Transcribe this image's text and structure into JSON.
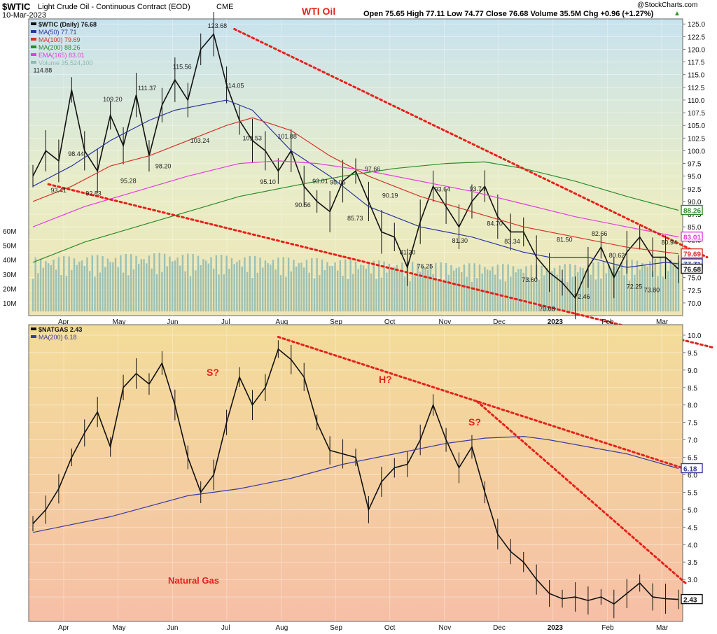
{
  "header": {
    "symbol": "$WTIC",
    "description": "Light Crude Oil - Continuous Contract (EOD)",
    "exchange": "CME",
    "date": "10-Mar-2023",
    "credit": "@StockCharts.com",
    "quote": "Open 75.65  High 77.11  Low 74.77  Close 76.68  Volume 35.5M  Chg +0.96 (+1.27%)",
    "quote_arrow": "▲"
  },
  "annotations": {
    "wti_title": "WTI Oil",
    "natgas_title": "Natural Gas",
    "s1": "S?",
    "h": "H?",
    "s2": "S?"
  },
  "colors": {
    "price": "#111111",
    "ma50": "#2b35a0",
    "ma100": "#d6332a",
    "ma200": "#2c8a2c",
    "ema165": "#e43ce0",
    "volume": "#8fb8b0",
    "trendline": "#e4221b",
    "natgas_ma200": "#3a3aa0"
  },
  "chart_data": [
    {
      "type": "line",
      "title": "$WTIC Light Crude Oil - Continuous Contract (EOD)",
      "x_axis_labels": [
        "Apr",
        "May",
        "Jun",
        "Jul",
        "Aug",
        "Sep",
        "Oct",
        "Nov",
        "Dec",
        "2023",
        "Feb",
        "Mar"
      ],
      "ylim": [
        67.5,
        126
      ],
      "y_ticks": [
        70.0,
        72.5,
        75.0,
        77.5,
        80.0,
        82.5,
        85.0,
        87.5,
        90.0,
        92.5,
        95.0,
        97.5,
        100.0,
        102.5,
        105.0,
        107.5,
        110.0,
        112.5,
        115.0,
        117.5,
        120.0,
        122.5,
        125.0
      ],
      "volume_ticks": [
        "60M",
        "50M",
        "40M",
        "30M",
        "20M",
        "10M"
      ],
      "legend": [
        {
          "label": "$WTIC (Daily) 76.68",
          "color": "#111111"
        },
        {
          "label": "MA(50) 77.71",
          "color": "#2b35a0"
        },
        {
          "label": "MA(100) 79.69",
          "color": "#d6332a"
        },
        {
          "label": "MA(200) 88.26",
          "color": "#2c8a2c"
        },
        {
          "label": "EMA(165) 83.01",
          "color": "#e43ce0"
        },
        {
          "label": "Volume 35,524,100",
          "color": "#8fb8b0"
        }
      ],
      "price_labels": [
        "114.88",
        "93.41",
        "98.44",
        "92.83",
        "109.20",
        "95.28",
        "111.37",
        "98.20",
        "115.56",
        "103.24",
        "123.68",
        "114.05",
        "101.53",
        "95.10",
        "101.88",
        "90.56",
        "93.01",
        "95.05",
        "85.73",
        "97.66",
        "90.19",
        "81.20",
        "76.25",
        "93.64",
        "81.30",
        "93.74",
        "84.70",
        "83.34",
        "73.60",
        "70.08",
        "81.50",
        "72.46",
        "82.66",
        "80.62",
        "72.25",
        "73.80",
        "80.94"
      ],
      "last_value_tags": [
        {
          "value": "88.26",
          "color": "#2c8a2c"
        },
        {
          "value": "83.01",
          "color": "#e43ce0"
        },
        {
          "value": "79.69",
          "color": "#d6332a"
        },
        {
          "value": "77.71",
          "color": "#2b35a0"
        },
        {
          "value": "76.68",
          "color": "#111111"
        }
      ],
      "series": [
        {
          "name": "$WTIC",
          "x": [
            0,
            5,
            10,
            15,
            20,
            25,
            30,
            35,
            40,
            45,
            50,
            55,
            60,
            65,
            70,
            75,
            80,
            85,
            90,
            95,
            100,
            105,
            110,
            115,
            120,
            125,
            130,
            135,
            140,
            145,
            150,
            155,
            160,
            165,
            170,
            175,
            180,
            185,
            190,
            195,
            200,
            205,
            210,
            215,
            220,
            225,
            230,
            235,
            240,
            245,
            250
          ],
          "values": [
            95,
            100,
            98,
            112,
            100,
            96,
            107,
            101,
            111,
            99,
            109,
            114,
            110,
            120,
            123,
            113,
            106,
            102,
            100,
            96,
            100,
            93,
            90,
            88,
            94,
            96,
            90,
            84,
            83,
            77,
            86,
            93,
            89,
            85,
            90,
            93,
            87,
            84,
            84,
            79,
            76,
            74,
            71,
            77,
            81,
            75,
            80,
            83,
            79,
            79,
            76.68
          ]
        },
        {
          "name": "MA(50)",
          "x": [
            0,
            15,
            30,
            45,
            55,
            65,
            75,
            85,
            100,
            115,
            130,
            150,
            170,
            190,
            200,
            215,
            230,
            245,
            250
          ],
          "values": [
            93,
            97,
            102,
            106,
            108,
            109,
            110,
            108,
            100,
            95,
            89,
            85,
            83,
            80,
            79,
            79,
            77,
            78,
            77.71
          ]
        },
        {
          "name": "MA(100)",
          "x": [
            0,
            15,
            30,
            45,
            55,
            65,
            75,
            85,
            100,
            115,
            130,
            150,
            170,
            190,
            210,
            230,
            250
          ],
          "values": [
            90,
            93,
            97,
            99,
            101,
            103,
            105,
            106.5,
            104,
            99,
            95,
            91,
            88,
            85,
            83,
            81,
            79.69
          ]
        },
        {
          "name": "MA(200)",
          "x": [
            0,
            20,
            40,
            60,
            80,
            100,
            120,
            140,
            160,
            175,
            190,
            210,
            230,
            250
          ],
          "values": [
            78,
            82,
            85,
            88,
            91,
            93,
            95,
            96.5,
            97.5,
            97.8,
            96.5,
            94,
            91,
            88.26
          ]
        },
        {
          "name": "EMA(165)",
          "x": [
            0,
            20,
            40,
            60,
            80,
            95,
            110,
            130,
            150,
            170,
            190,
            210,
            230,
            250
          ],
          "values": [
            85,
            89,
            92,
            95,
            97.5,
            98,
            97.5,
            96,
            94,
            92,
            89.5,
            87,
            85,
            83.01
          ]
        },
        {
          "name": "Volume",
          "x": [
            0,
            50,
            100,
            150,
            200,
            250
          ],
          "values": [
            35,
            38,
            35,
            32,
            30,
            35.5
          ]
        }
      ]
    },
    {
      "type": "line",
      "title": "$NATGAS",
      "x_axis_labels": [
        "Apr",
        "May",
        "Jun",
        "Jul",
        "Aug",
        "Sep",
        "Oct",
        "Nov",
        "Dec",
        "2023",
        "Feb",
        "Mar"
      ],
      "ylim": [
        1.8,
        10.3
      ],
      "y_ticks": [
        2.5,
        3.0,
        3.5,
        4.0,
        4.5,
        5.0,
        5.5,
        6.0,
        6.5,
        7.0,
        7.5,
        8.0,
        8.5,
        9.0,
        9.5,
        10.0
      ],
      "legend": [
        {
          "label": "$NATGAS 2.43",
          "color": "#111111"
        },
        {
          "label": "MA(200) 6.18",
          "color": "#3a3aa0"
        }
      ],
      "last_value_tags": [
        {
          "value": "6.18",
          "color": "#3a3aa0"
        },
        {
          "value": "2.43",
          "color": "#111111"
        }
      ],
      "series": [
        {
          "name": "$NATGAS",
          "x": [
            0,
            5,
            10,
            15,
            20,
            25,
            30,
            35,
            40,
            45,
            50,
            55,
            60,
            65,
            70,
            75,
            80,
            85,
            90,
            95,
            100,
            105,
            110,
            115,
            120,
            125,
            130,
            135,
            140,
            145,
            150,
            155,
            160,
            165,
            170,
            175,
            180,
            185,
            190,
            195,
            200,
            205,
            210,
            215,
            220,
            225,
            230,
            235,
            240,
            245,
            250
          ],
          "values": [
            4.6,
            5.0,
            5.6,
            6.5,
            7.2,
            7.8,
            6.8,
            8.5,
            8.9,
            8.6,
            9.2,
            8.0,
            6.5,
            5.5,
            6.0,
            7.5,
            8.8,
            8.0,
            8.5,
            9.6,
            9.3,
            8.8,
            7.5,
            6.7,
            6.6,
            6.5,
            5.0,
            5.8,
            6.2,
            6.3,
            7.0,
            8.0,
            7.0,
            6.2,
            6.8,
            5.5,
            4.3,
            3.8,
            3.5,
            3.0,
            2.6,
            2.45,
            2.5,
            2.4,
            2.5,
            2.3,
            2.6,
            2.9,
            2.5,
            2.45,
            2.43
          ]
        },
        {
          "name": "MA(200)",
          "x": [
            0,
            30,
            60,
            80,
            100,
            120,
            140,
            160,
            175,
            190,
            200,
            215,
            230,
            250
          ],
          "values": [
            4.35,
            4.8,
            5.4,
            5.6,
            5.9,
            6.3,
            6.6,
            6.9,
            7.05,
            7.1,
            7.0,
            6.8,
            6.6,
            6.18
          ]
        }
      ]
    }
  ]
}
